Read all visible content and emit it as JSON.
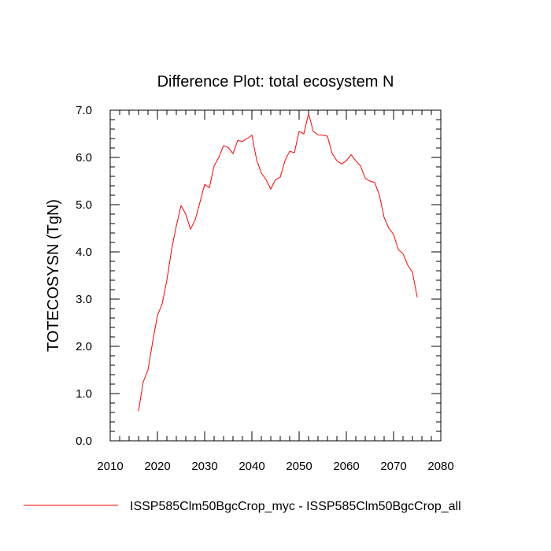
{
  "chart_data": {
    "type": "line",
    "title": "Difference Plot: total ecosystem N",
    "xlabel": "",
    "ylabel": "TOTECOSYSN  (TgN)",
    "xlim": [
      2010,
      2080
    ],
    "ylim": [
      0,
      7
    ],
    "xticks": [
      2010,
      2020,
      2030,
      2040,
      2050,
      2060,
      2070,
      2080
    ],
    "xtick_labels": [
      "2010",
      "2020",
      "2030",
      "2040",
      "2050",
      "2060",
      "2070",
      "2080"
    ],
    "yticks": [
      0,
      1,
      2,
      3,
      4,
      5,
      6,
      7
    ],
    "ytick_labels": [
      "0.0",
      "1.0",
      "2.0",
      "3.0",
      "4.0",
      "5.0",
      "6.0",
      "7.0"
    ],
    "grid": false,
    "legend_position": "bottom",
    "series": [
      {
        "name": "ISSP585Clm50BgcCrop_myc - ISSP585Clm50BgcCrop_all",
        "color": "#ff0000",
        "x": [
          2016,
          2017,
          2018,
          2019,
          2020,
          2021,
          2022,
          2023,
          2024,
          2025,
          2026,
          2027,
          2028,
          2029,
          2030,
          2031,
          2032,
          2033,
          2034,
          2035,
          2036,
          2037,
          2038,
          2039,
          2040,
          2041,
          2042,
          2043,
          2044,
          2045,
          2046,
          2047,
          2048,
          2049,
          2050,
          2051,
          2052,
          2053,
          2054,
          2055,
          2056,
          2057,
          2058,
          2059,
          2060,
          2061,
          2062,
          2063,
          2064,
          2065,
          2066,
          2067,
          2068,
          2069,
          2070,
          2071,
          2072,
          2073,
          2074,
          2075
        ],
        "y": [
          0.63,
          1.25,
          1.5,
          2.1,
          2.65,
          2.9,
          3.4,
          4.05,
          4.55,
          4.98,
          4.8,
          4.48,
          4.68,
          5.05,
          5.43,
          5.36,
          5.82,
          6.0,
          6.25,
          6.21,
          6.08,
          6.36,
          6.34,
          6.4,
          6.47,
          5.95,
          5.67,
          5.53,
          5.33,
          5.53,
          5.58,
          5.93,
          6.13,
          6.1,
          6.55,
          6.5,
          6.93,
          6.55,
          6.48,
          6.47,
          6.45,
          6.08,
          5.93,
          5.86,
          5.93,
          6.06,
          5.93,
          5.82,
          5.56,
          5.5,
          5.47,
          5.2,
          4.73,
          4.5,
          4.37,
          4.05,
          3.96,
          3.72,
          3.57,
          3.04
        ]
      }
    ]
  }
}
